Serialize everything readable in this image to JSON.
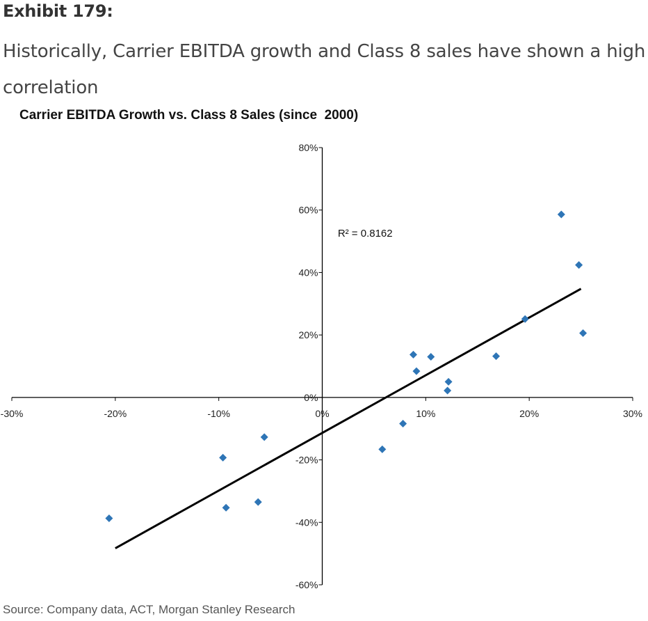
{
  "exhibit_label": "Exhibit 179:",
  "subtitle": "Historically, Carrier EBITDA growth and Class 8 sales have shown a high correlation",
  "source": "Source: Company data, ACT, Morgan Stanley Research",
  "chart_data": {
    "type": "scatter",
    "title": "Carrier EBITDA Growth vs. Class 8 Sales (since  2000)",
    "xlabel": "",
    "ylabel": "",
    "xlim": [
      -30,
      30
    ],
    "ylim": [
      -60,
      80
    ],
    "x_ticks": [
      -30,
      -20,
      -10,
      0,
      10,
      20,
      30
    ],
    "y_ticks": [
      -60,
      -40,
      -20,
      0,
      20,
      40,
      60,
      80
    ],
    "x_tick_labels": [
      "-30%",
      "-20%",
      "-10%",
      "0%",
      "10%",
      "20%",
      "30%"
    ],
    "y_tick_labels": [
      "-60%",
      "-40%",
      "-20%",
      "0%",
      "20%",
      "40%",
      "60%",
      "80%"
    ],
    "grid": false,
    "legend": "none",
    "point_color": "#2e75b6",
    "line_color": "#000000",
    "series": [
      {
        "points": [
          {
            "x": -20.6,
            "y": -38.7
          },
          {
            "x": -9.6,
            "y": -19.3
          },
          {
            "x": -9.3,
            "y": -35.3
          },
          {
            "x": -6.2,
            "y": -33.5
          },
          {
            "x": -5.6,
            "y": -12.7
          },
          {
            "x": 5.8,
            "y": -16.6
          },
          {
            "x": 7.8,
            "y": -8.4
          },
          {
            "x": 8.8,
            "y": 13.7
          },
          {
            "x": 9.1,
            "y": 8.4
          },
          {
            "x": 10.5,
            "y": 13.0
          },
          {
            "x": 12.1,
            "y": 2.2
          },
          {
            "x": 12.2,
            "y": 5.0
          },
          {
            "x": 16.8,
            "y": 13.2
          },
          {
            "x": 19.6,
            "y": 25.1
          },
          {
            "x": 23.1,
            "y": 58.6
          },
          {
            "x": 24.8,
            "y": 42.4
          },
          {
            "x": 25.2,
            "y": 20.6
          }
        ]
      }
    ],
    "trendline": {
      "x": [
        -20.0,
        25.0
      ],
      "y": [
        -48.3,
        34.8
      ]
    },
    "annotations": [
      {
        "text": "R² = 0.8162",
        "x": 1.5,
        "y": 51.5
      }
    ]
  }
}
